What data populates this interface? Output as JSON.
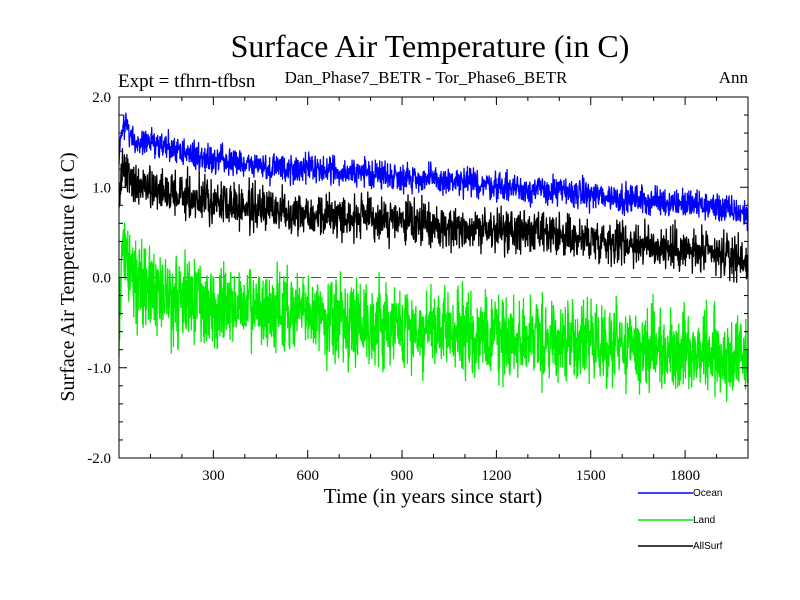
{
  "chart_data": {
    "type": "line",
    "title": "Surface Air Temperature (in C)",
    "subtitle_left": "Expt = tfhrn-tfbsn",
    "subtitle_center": "Dan_Phase7_BETR - Tor_Phase6_BETR",
    "subtitle_right": "Ann",
    "xlabel": "Time (in years since start)",
    "ylabel": "Surface Air Temperature (in C)",
    "xlim": [
      0,
      2000
    ],
    "ylim": [
      -2.0,
      2.0
    ],
    "xticks": [
      300,
      600,
      900,
      1200,
      1500,
      1800
    ],
    "xtick_labels": [
      "300",
      "600",
      "900",
      "1200",
      "1500",
      "1800"
    ],
    "yticks": [
      2.0,
      1.0,
      0.0,
      -1.0,
      -2.0
    ],
    "ytick_labels": [
      "2.0",
      "1.0",
      "0.0",
      "-1.0",
      "-2.0"
    ],
    "reference_line": 0.0,
    "series": [
      {
        "name": "Ocean",
        "color": "#0000ff",
        "x": [
          0,
          10,
          20,
          40,
          60,
          80,
          100,
          150,
          200,
          300,
          400,
          500,
          600,
          700,
          800,
          900,
          1000,
          1100,
          1200,
          1300,
          1400,
          1500,
          1600,
          1700,
          1800,
          1900,
          2000
        ],
        "values": [
          1.3,
          1.65,
          1.7,
          1.55,
          1.45,
          1.5,
          1.5,
          1.45,
          1.4,
          1.3,
          1.25,
          1.22,
          1.2,
          1.18,
          1.15,
          1.12,
          1.08,
          1.05,
          1.02,
          0.98,
          0.95,
          0.92,
          0.88,
          0.85,
          0.82,
          0.78,
          0.7
        ],
        "noise": 0.12
      },
      {
        "name": "Land",
        "color": "#00ee00",
        "x": [
          0,
          10,
          20,
          40,
          60,
          80,
          100,
          150,
          200,
          300,
          400,
          500,
          600,
          700,
          800,
          900,
          1000,
          1100,
          1200,
          1300,
          1400,
          1500,
          1600,
          1700,
          1800,
          1900,
          2000
        ],
        "values": [
          -0.5,
          0.2,
          0.25,
          0.1,
          0.0,
          -0.05,
          -0.1,
          -0.2,
          -0.25,
          -0.3,
          -0.35,
          -0.38,
          -0.4,
          -0.45,
          -0.5,
          -0.55,
          -0.6,
          -0.62,
          -0.65,
          -0.68,
          -0.7,
          -0.72,
          -0.75,
          -0.78,
          -0.8,
          -0.85,
          -0.9
        ],
        "noise": 0.35
      },
      {
        "name": "AllSurf",
        "color": "#000000",
        "x": [
          0,
          10,
          20,
          40,
          60,
          80,
          100,
          150,
          200,
          300,
          400,
          500,
          600,
          700,
          800,
          900,
          1000,
          1100,
          1200,
          1300,
          1400,
          1500,
          1600,
          1700,
          1800,
          1900,
          2000
        ],
        "values": [
          0.8,
          1.2,
          1.25,
          1.05,
          1.0,
          1.0,
          1.0,
          0.95,
          0.9,
          0.85,
          0.78,
          0.75,
          0.72,
          0.68,
          0.65,
          0.62,
          0.58,
          0.55,
          0.52,
          0.5,
          0.45,
          0.42,
          0.4,
          0.35,
          0.3,
          0.25,
          0.2
        ],
        "noise": 0.18
      }
    ],
    "legend_position": "bottom-right",
    "legend": [
      "Ocean",
      "Land",
      "AllSurf"
    ]
  }
}
